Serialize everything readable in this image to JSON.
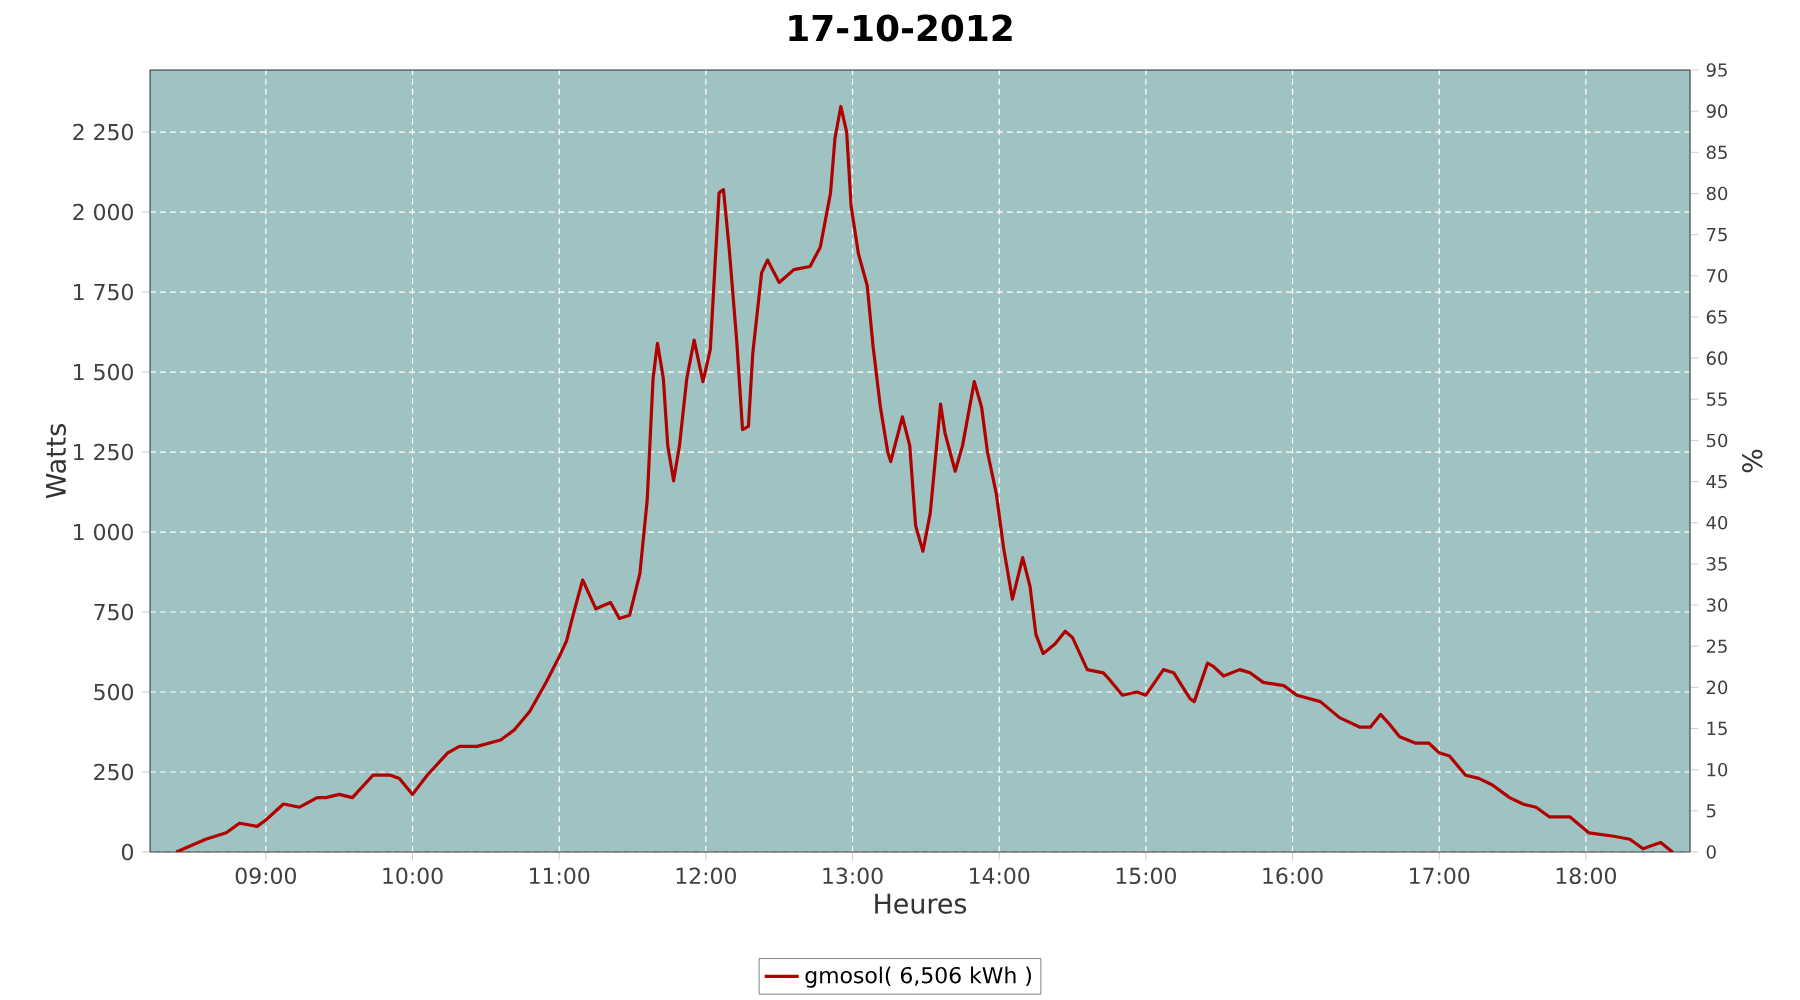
{
  "chart_data": {
    "type": "line",
    "title": "17-10-2012",
    "xlabel": "Heures",
    "ylabel": "Watts",
    "y2label": "%",
    "xlim": [
      8.21,
      18.71
    ],
    "xticks": [
      {
        "value": 9,
        "label": "09:00"
      },
      {
        "value": 10,
        "label": "10:00"
      },
      {
        "value": 11,
        "label": "11:00"
      },
      {
        "value": 12,
        "label": "12:00"
      },
      {
        "value": 13,
        "label": "13:00"
      },
      {
        "value": 14,
        "label": "14:00"
      },
      {
        "value": 15,
        "label": "15:00"
      },
      {
        "value": 16,
        "label": "16:00"
      },
      {
        "value": 17,
        "label": "17:00"
      },
      {
        "value": 18,
        "label": "18:00"
      }
    ],
    "ylim": [
      0,
      2444
    ],
    "yticks": [
      0,
      250,
      500,
      750,
      {
        "value": 1000,
        "label": "1 000"
      },
      {
        "value": 1250,
        "label": "1 250"
      },
      {
        "value": 1500,
        "label": "1 500"
      },
      {
        "value": 1750,
        "label": "1 750"
      },
      {
        "value": 2000,
        "label": "2 000"
      },
      {
        "value": 2250,
        "label": "2 250"
      }
    ],
    "y2lim": [
      0,
      95
    ],
    "y2ticks": [
      0,
      5,
      10,
      15,
      20,
      25,
      30,
      35,
      40,
      45,
      50,
      55,
      60,
      65,
      70,
      75,
      80,
      85,
      90,
      95
    ],
    "grid": true,
    "legend": "bottom",
    "marker": "none",
    "line_style": "solid",
    "series": [
      {
        "name": "gmosol( 6,506 kWh )",
        "color": "#b00000",
        "x": [
          8.39,
          8.59,
          8.73,
          8.82,
          8.94,
          9.0,
          9.12,
          9.23,
          9.35,
          9.41,
          9.5,
          9.59,
          9.73,
          9.85,
          9.91,
          10.0,
          10.1,
          10.24,
          10.32,
          10.44,
          10.6,
          10.69,
          10.8,
          10.91,
          11.0,
          11.05,
          11.1,
          11.16,
          11.25,
          11.35,
          11.41,
          11.48,
          11.55,
          11.6,
          11.64,
          11.67,
          11.71,
          11.74,
          11.78,
          11.82,
          11.87,
          11.92,
          11.98,
          12.03,
          12.09,
          12.12,
          12.16,
          12.21,
          12.25,
          12.29,
          12.32,
          12.38,
          12.42,
          12.5,
          12.6,
          12.71,
          12.78,
          12.85,
          12.88,
          12.92,
          12.96,
          12.99,
          13.04,
          13.1,
          13.14,
          13.19,
          13.24,
          13.26,
          13.34,
          13.39,
          13.43,
          13.48,
          13.53,
          13.6,
          13.63,
          13.7,
          13.75,
          13.83,
          13.88,
          13.92,
          13.98,
          14.03,
          14.09,
          14.16,
          14.21,
          14.25,
          14.3,
          14.38,
          14.45,
          14.5,
          14.6,
          14.71,
          14.75,
          14.84,
          14.94,
          15.0,
          15.12,
          15.19,
          15.3,
          15.33,
          15.42,
          15.46,
          15.53,
          15.64,
          15.71,
          15.8,
          15.94,
          16.03,
          16.19,
          16.32,
          16.46,
          16.53,
          16.6,
          16.66,
          16.73,
          16.84,
          16.93,
          17.0,
          17.07,
          17.18,
          17.27,
          17.36,
          17.48,
          17.57,
          17.66,
          17.75,
          17.89,
          18.02,
          18.18,
          18.3,
          18.39,
          18.45,
          18.51,
          18.59
        ],
        "values": [
          0,
          40,
          60,
          90,
          80,
          100,
          150,
          140,
          170,
          170,
          180,
          170,
          240,
          240,
          230,
          180,
          240,
          310,
          330,
          330,
          350,
          380,
          440,
          530,
          610,
          660,
          750,
          850,
          760,
          780,
          730,
          740,
          870,
          1100,
          1480,
          1590,
          1480,
          1270,
          1160,
          1270,
          1480,
          1600,
          1470,
          1570,
          2060,
          2070,
          1880,
          1600,
          1320,
          1330,
          1560,
          1810,
          1850,
          1780,
          1820,
          1830,
          1890,
          2060,
          2230,
          2330,
          2250,
          2020,
          1870,
          1770,
          1580,
          1390,
          1250,
          1220,
          1360,
          1270,
          1020,
          940,
          1060,
          1400,
          1310,
          1190,
          1270,
          1470,
          1390,
          1250,
          1120,
          950,
          790,
          920,
          830,
          680,
          620,
          650,
          690,
          670,
          570,
          560,
          540,
          490,
          500,
          490,
          570,
          560,
          480,
          470,
          590,
          580,
          550,
          570,
          560,
          530,
          520,
          490,
          470,
          420,
          390,
          390,
          430,
          400,
          360,
          340,
          340,
          310,
          300,
          240,
          230,
          210,
          170,
          150,
          140,
          110,
          110,
          60,
          50,
          40,
          10,
          20,
          30,
          0
        ]
      }
    ]
  }
}
